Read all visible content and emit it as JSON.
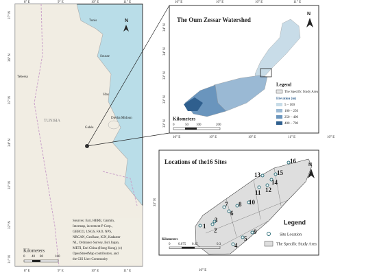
{
  "left_map": {
    "lon_top": [
      "8° E",
      "9° E",
      "10° E",
      "11° E"
    ],
    "lon_bottom": [
      "8° E",
      "9° E",
      "10° E",
      "11° E"
    ],
    "lat": [
      "37° N",
      "36° N",
      "35° N",
      "34° N",
      "33° N",
      "32° N",
      "31° N"
    ],
    "places": [
      "Tunis",
      "Sousse",
      "Sfax",
      "Gabès",
      "Djerba Midoun",
      "TUNISIA",
      "Tebessa"
    ],
    "scale_title": "Kilometers",
    "scale": [
      "0",
      "40",
      "80",
      "160"
    ],
    "sources": [
      "Sources: Esri, HERE, Garmin,",
      "Intermap, increment P Corp.,",
      "GEBCO, USGS, FAO, NPS,",
      "NRCAN, GeoBase, IGN, Kadaster",
      "NL, Ordnance Survey, Esri Japan,",
      "METI, Esri China (Hong Kong), (c)",
      "OpenStreetMap contributors, and",
      "the GIS User Community"
    ],
    "north": "N"
  },
  "watershed_map": {
    "title": "The Oum Zessar Watershed",
    "lon_top": [
      "10° E",
      "10° E",
      "10° E",
      "11° E"
    ],
    "lon_bottom": [
      "10° E",
      "10° E",
      "10° E",
      "11° E",
      "10° E"
    ],
    "lat": [
      "34° N",
      "34° N",
      "33° N",
      "33° N",
      "33° N"
    ],
    "legend_title": "Legend",
    "study_area": "The Specific Study Area",
    "elevation_title": "Elevation (m)",
    "elevation_classes": [
      "5 – 100",
      "100 – 250",
      "250 – 400",
      "400 – 700"
    ],
    "scale_title": "Kilometers",
    "scale": [
      "0",
      "50",
      "100",
      "200"
    ],
    "north": "N"
  },
  "sites_map": {
    "title": "Locations of the16 Sites",
    "sites": [
      "1",
      "2",
      "3",
      "4",
      "5",
      "6",
      "7",
      "8",
      "9",
      "10",
      "11",
      "12",
      "13",
      "14",
      "15",
      "16"
    ],
    "lat": "33° N",
    "lon": "10° E",
    "legend_title": "Legend",
    "site_location": "Site Location",
    "study_area": "The Specific Study Area",
    "scale_title": "Kilometers",
    "scale": [
      "0",
      "0.075",
      "0.15",
      "0.3"
    ],
    "north": "N"
  }
}
